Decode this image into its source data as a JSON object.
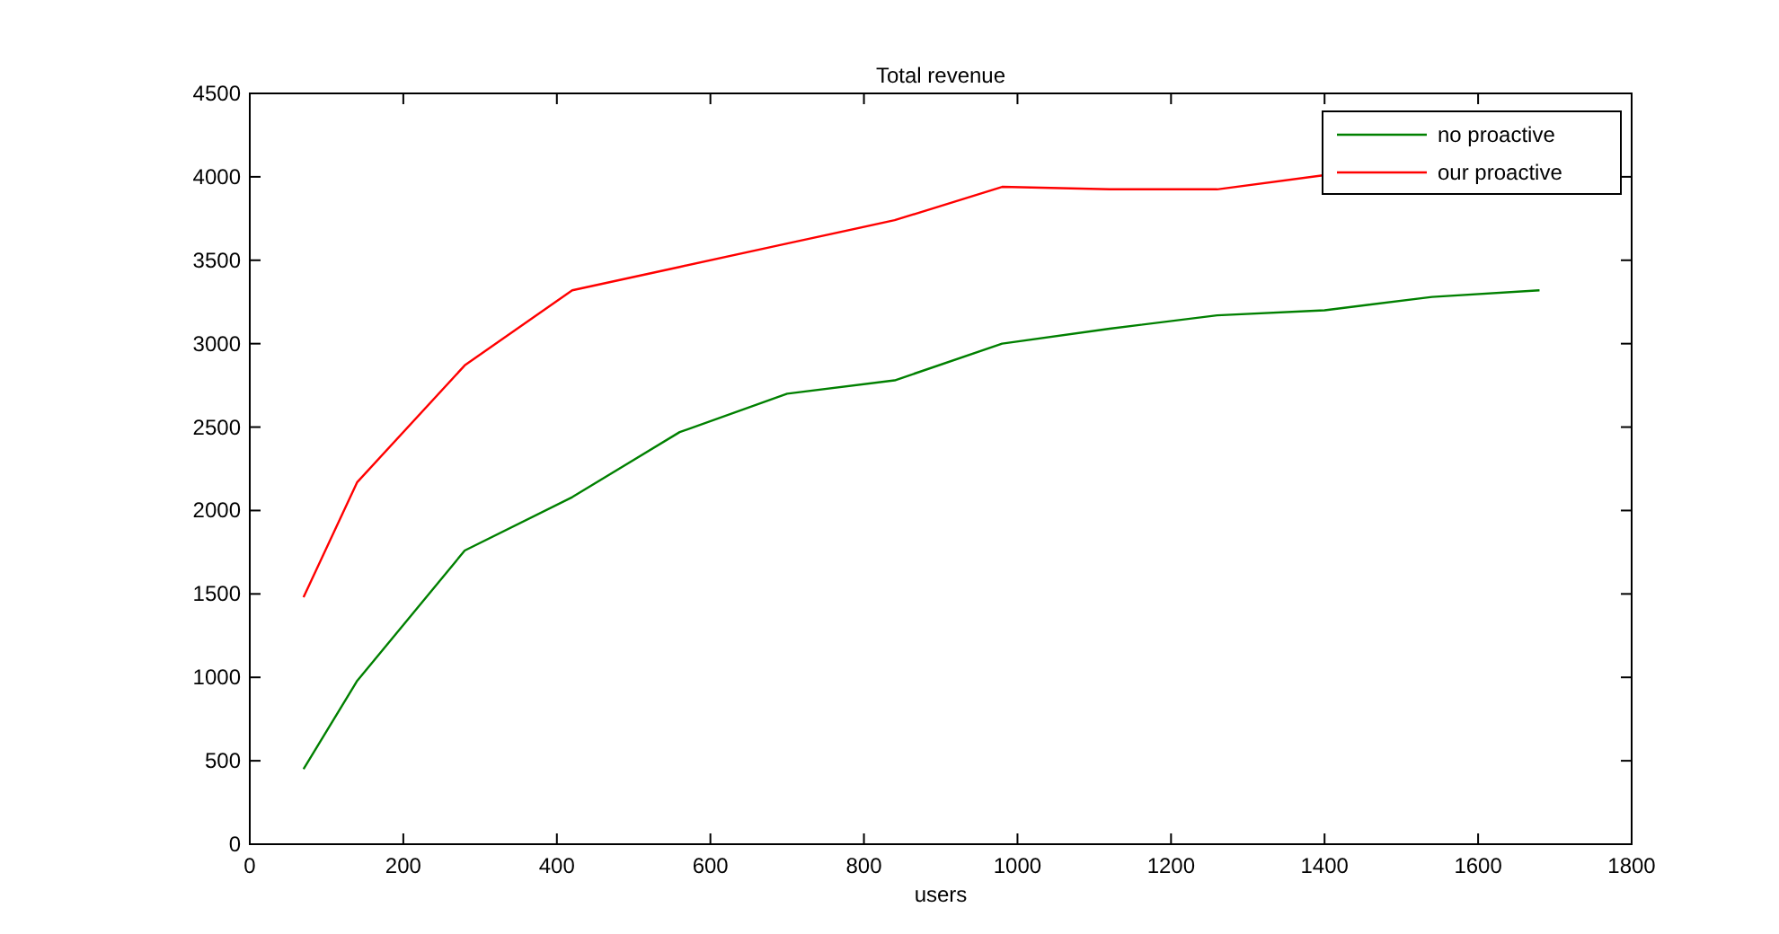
{
  "chart_data": {
    "type": "line",
    "title": "Total revenue",
    "xlabel": "users",
    "x": [
      70,
      140,
      280,
      420,
      560,
      700,
      840,
      980,
      1120,
      1260,
      1400,
      1540,
      1680
    ],
    "series": [
      {
        "name": "no proactive",
        "color": "#008000",
        "values": [
          450,
          980,
          1760,
          2080,
          2470,
          2700,
          2780,
          3000,
          3090,
          3170,
          3200,
          3280,
          3320
        ]
      },
      {
        "name": "our proactive",
        "color": "#ff0000",
        "values": [
          1480,
          2170,
          2870,
          3320,
          3460,
          3600,
          3740,
          3940,
          3925,
          3925,
          4010,
          null,
          null
        ]
      }
    ],
    "xlim": [
      0,
      1800
    ],
    "xticks": [
      0,
      200,
      400,
      600,
      800,
      1000,
      1200,
      1400,
      1600,
      1800
    ],
    "ylim": [
      0,
      4500
    ],
    "yticks": [
      0,
      500,
      1000,
      1500,
      2000,
      2500,
      3000,
      3500,
      4000,
      4500
    ],
    "grid": false,
    "legend": "top right",
    "line_style": "solid",
    "marker": "none"
  }
}
